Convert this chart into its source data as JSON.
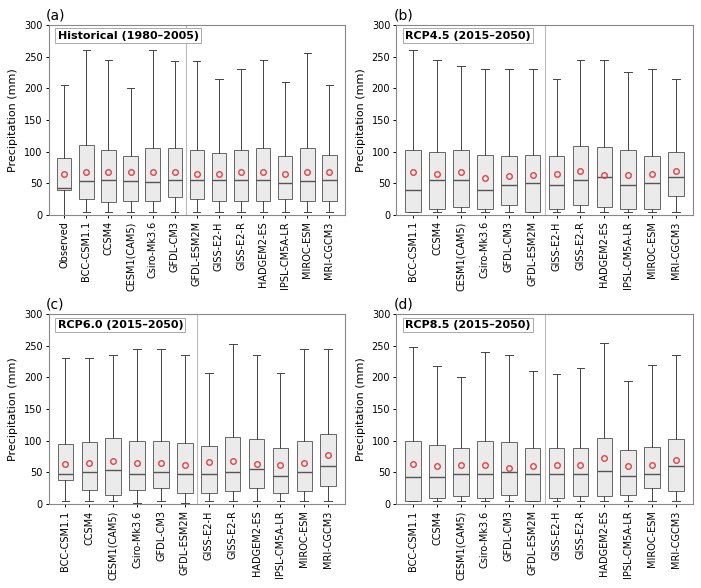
{
  "panels": [
    {
      "label": "(a)",
      "title": "Historical (1980–2005)",
      "categories": [
        "Observed",
        "BCC-CSM1.1",
        "CCSM4",
        "CESM1(CAM5)",
        "Csiro-Mk3.6",
        "GFDL-CM3",
        "GFDL-ESM2M",
        "GISS-E2-H",
        "GISS-E2-R",
        "HADGEM2-ES",
        "IPSL-CM5A-LR",
        "MIROC-ESM",
        "MRI-CGCM3"
      ],
      "whislo": [
        0,
        5,
        5,
        5,
        5,
        5,
        5,
        5,
        5,
        5,
        5,
        5,
        5
      ],
      "q1": [
        40,
        25,
        20,
        22,
        22,
        28,
        25,
        22,
        22,
        22,
        25,
        22,
        22
      ],
      "median": [
        42,
        53,
        55,
        53,
        52,
        55,
        55,
        55,
        55,
        55,
        50,
        53,
        55
      ],
      "q3": [
        90,
        110,
        103,
        93,
        105,
        106,
        103,
        97,
        102,
        105,
        93,
        105,
        95
      ],
      "whishi": [
        205,
        260,
        245,
        200,
        260,
        243,
        243,
        215,
        230,
        245,
        210,
        255,
        205
      ],
      "mean": [
        65,
        67,
        68,
        67,
        68,
        68,
        65,
        65,
        68,
        68,
        65,
        67,
        68
      ]
    },
    {
      "label": "(b)",
      "title": "RCP4.5 (2015–2050)",
      "categories": [
        "BCC-CSM1.1",
        "CCSM4",
        "CESM1(CAM5)",
        "Csiro-Mk3.6",
        "GFDL-CM3",
        "GFDL-ESM2M",
        "GISS-E2-H",
        "GISS-E2-R",
        "HADGEM2-ES",
        "IPSL-CM5A-LR",
        "MIROC-ESM",
        "MRI-CGCM3"
      ],
      "whislo": [
        5,
        5,
        5,
        5,
        5,
        5,
        5,
        5,
        5,
        5,
        5,
        5
      ],
      "q1": [
        5,
        10,
        12,
        10,
        15,
        5,
        10,
        15,
        12,
        10,
        10,
        30
      ],
      "median": [
        40,
        55,
        55,
        40,
        48,
        50,
        47,
        55,
        60,
        47,
        50,
        60
      ],
      "q3": [
        103,
        100,
        103,
        95,
        93,
        95,
        93,
        108,
        107,
        102,
        93,
        100
      ],
      "whishi": [
        260,
        245,
        235,
        230,
        230,
        230,
        215,
        245,
        245,
        225,
        230,
        215
      ],
      "mean": [
        67,
        65,
        68,
        58,
        62,
        63,
        65,
        70,
        63,
        63,
        65,
        70
      ]
    },
    {
      "label": "(c)",
      "title": "RCP6.0 (2015–2050)",
      "categories": [
        "BCC-CSM1.1",
        "CCSM4",
        "CESM1(CAM5)",
        "Csiro-Mk3.6",
        "GFDL-CM3",
        "GFDL-ESM2M",
        "GISS-E2-H",
        "GISS-E2-R",
        "HADGEM2-ES",
        "IPSL-CM5A-LR",
        "MIROC-ESM",
        "MRI-CGCM3"
      ],
      "whislo": [
        5,
        5,
        5,
        2,
        5,
        2,
        5,
        5,
        5,
        5,
        5,
        5
      ],
      "q1": [
        38,
        22,
        15,
        22,
        25,
        18,
        18,
        20,
        25,
        18,
        20,
        28
      ],
      "median": [
        47,
        50,
        53,
        47,
        50,
        47,
        47,
        50,
        55,
        45,
        50,
        60
      ],
      "q3": [
        95,
        98,
        104,
        100,
        100,
        97,
        92,
        106,
        103,
        88,
        100,
        110
      ],
      "whishi": [
        230,
        230,
        235,
        244,
        244,
        235,
        207,
        253,
        235,
        207,
        244,
        245
      ],
      "mean": [
        63,
        65,
        68,
        65,
        65,
        62,
        67,
        68,
        63,
        62,
        65,
        78
      ]
    },
    {
      "label": "(d)",
      "title": "RCP8.5 (2015–2050)",
      "categories": [
        "BCC-CSM1.1",
        "CCSM4",
        "CESM1(CAM5)",
        "Csiro-Mk3.6",
        "GFDL-CM3",
        "GFDL-ESM2M",
        "GISS-E2-H",
        "GISS-E2-R",
        "HADGEM2-ES",
        "IPSL-CM5A-LR",
        "MIROC-ESM",
        "MRI-CGCM3"
      ],
      "whislo": [
        5,
        5,
        5,
        5,
        5,
        5,
        5,
        5,
        5,
        5,
        5,
        5
      ],
      "q1": [
        5,
        10,
        12,
        10,
        15,
        5,
        10,
        13,
        12,
        15,
        25,
        20
      ],
      "median": [
        42,
        42,
        47,
        47,
        50,
        48,
        47,
        47,
        52,
        45,
        48,
        60
      ],
      "q3": [
        100,
        93,
        89,
        100,
        98,
        88,
        88,
        88,
        105,
        85,
        90,
        103
      ],
      "whishi": [
        248,
        218,
        200,
        240,
        235,
        210,
        205,
        215,
        255,
        195,
        220,
        235
      ],
      "mean": [
        63,
        60,
        62,
        62,
        57,
        60,
        62,
        62,
        73,
        60,
        61,
        70
      ]
    }
  ],
  "ylabel": "Precipitation (mm)",
  "ylim": [
    0,
    300
  ],
  "yticks": [
    0,
    50,
    100,
    150,
    200,
    250,
    300
  ],
  "box_facecolor": "#ebebeb",
  "box_edgecolor": "#666666",
  "whisker_color": "#444444",
  "cap_color": "#444444",
  "median_color": "#555555",
  "mean_facecolor": "none",
  "mean_edgecolor": "#dd4444",
  "mean_marker": "o",
  "mean_markersize": 4,
  "tick_label_fontsize": 7,
  "axis_label_fontsize": 8,
  "panel_label_fontsize": 10,
  "title_fontsize": 8,
  "spine_color": "#888888",
  "separator_color": "#bbbbbb"
}
